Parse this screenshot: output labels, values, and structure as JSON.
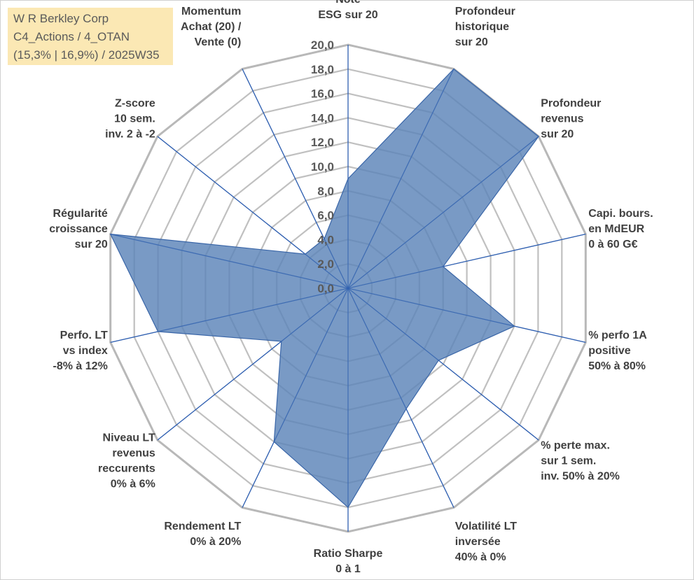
{
  "info_box": {
    "lines": [
      "W R Berkley Corp",
      "C4_Actions / 4_OTAN",
      "(15,3% | 16,9%) / 2025W35"
    ]
  },
  "colors": {
    "grid": "#c0c0c0",
    "spoke": "#2f5fb0",
    "fill": "#5b84b8",
    "stroke": "#3a66a8",
    "label": "#404040",
    "tick": "#595959"
  },
  "chart_data": {
    "type": "radar",
    "rmin": 0,
    "rmax": 20,
    "tick_step": 2,
    "ticks": [
      "0,0",
      "2,0",
      "4,0",
      "6,0",
      "8,0",
      "10,0",
      "12,0",
      "14,0",
      "16,0",
      "18,0",
      "20,0"
    ],
    "axes": [
      {
        "label": [
          "Note",
          "ESG sur 20"
        ],
        "value": 9.0
      },
      {
        "label": [
          "Profondeur",
          "historique",
          "sur 20"
        ],
        "value": 20.0
      },
      {
        "label": [
          "Profondeur",
          "revenus",
          "sur 20"
        ],
        "value": 20.0
      },
      {
        "label": [
          "Capi. bours.",
          "en MdEUR",
          "0 à 60 G€"
        ],
        "value": 8.0
      },
      {
        "label": [
          "% perfo 1A",
          "positive",
          "50% à 80%"
        ],
        "value": 14.0
      },
      {
        "label": [
          "% perte max.",
          "sur 1 sem.",
          "inv. 50% à 20%"
        ],
        "value": 9.5
      },
      {
        "label": [
          "Volatilité LT",
          "inversée",
          "40% à 0%"
        ],
        "value": 11.0
      },
      {
        "label": [
          "Ratio Sharpe",
          "0 à 1"
        ],
        "value": 18.0
      },
      {
        "label": [
          "Rendement LT",
          "0% à 20%"
        ],
        "value": 14.0
      },
      {
        "label": [
          "Niveau LT",
          "revenus",
          "reccurents",
          "0% à 6%"
        ],
        "value": 7.0
      },
      {
        "label": [
          "Perfo. LT",
          "vs index",
          "-8% à 12%"
        ],
        "value": 16.0
      },
      {
        "label": [
          "Régularité",
          "croissance",
          "sur 20"
        ],
        "value": 20.0
      },
      {
        "label": [
          "Z-score",
          "10 sem.",
          "inv. 2 à -2"
        ],
        "value": 4.5
      },
      {
        "label": [
          "Momentum",
          "Achat (20) /",
          "Vente (0)"
        ],
        "value": 4.5
      }
    ],
    "grid": true,
    "legend": "none"
  }
}
